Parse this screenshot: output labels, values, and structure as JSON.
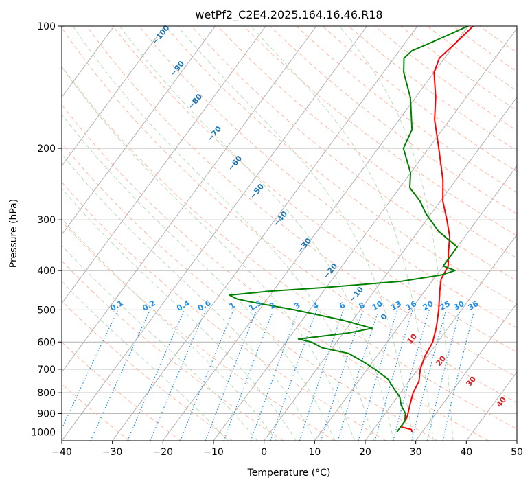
{
  "chart_data": {
    "type": "line",
    "subtype": "skew-t log-p",
    "title": "wetPf2_C2E4.2025.164.16.46.R18",
    "xlabel": "Temperature (°C)",
    "ylabel": "Pressure (hPa)",
    "xlim": [
      -40,
      50
    ],
    "ylim": [
      1050,
      100
    ],
    "y_scale": "log",
    "x_ticks": [
      "−40",
      "−30",
      "−20",
      "−10",
      "0",
      "10",
      "20",
      "30",
      "40",
      "50"
    ],
    "x_tick_values": [
      -40,
      -30,
      -20,
      -10,
      0,
      10,
      20,
      30,
      40,
      50
    ],
    "y_ticks": [
      "100",
      "200",
      "300",
      "400",
      "500",
      "600",
      "700",
      "800",
      "900",
      "1000"
    ],
    "y_tick_values": [
      100,
      200,
      300,
      400,
      500,
      600,
      700,
      800,
      900,
      1000
    ],
    "grid": true,
    "series": [
      {
        "role": "temperature",
        "color": "#ff0000",
        "points": [
          [
            1000,
            28
          ],
          [
            985,
            27.5
          ],
          [
            970,
            25
          ],
          [
            930,
            25
          ],
          [
            900,
            24.5
          ],
          [
            850,
            23.5
          ],
          [
            800,
            22.5
          ],
          [
            750,
            22
          ],
          [
            700,
            20.5
          ],
          [
            650,
            19.5
          ],
          [
            600,
            19
          ],
          [
            550,
            17.5
          ],
          [
            500,
            15.5
          ],
          [
            450,
            13
          ],
          [
            420,
            11.5
          ],
          [
            390,
            11
          ],
          [
            360,
            9
          ],
          [
            330,
            7
          ],
          [
            300,
            4
          ],
          [
            270,
            0.5
          ],
          [
            240,
            -2.5
          ],
          [
            200,
            -8
          ],
          [
            170,
            -13
          ],
          [
            150,
            -16
          ],
          [
            130,
            -20
          ],
          [
            120,
            -21
          ],
          [
            110,
            -20
          ],
          [
            100,
            -19
          ]
        ]
      },
      {
        "role": "dewpoint",
        "color": "#008000",
        "points": [
          [
            1000,
            25
          ],
          [
            970,
            25
          ],
          [
            940,
            25
          ],
          [
            900,
            24
          ],
          [
            860,
            22
          ],
          [
            820,
            20.5
          ],
          [
            780,
            18
          ],
          [
            740,
            15.5
          ],
          [
            700,
            11.5
          ],
          [
            670,
            8
          ],
          [
            640,
            4
          ],
          [
            620,
            -2
          ],
          [
            600,
            -5
          ],
          [
            590,
            -8
          ],
          [
            570,
            1
          ],
          [
            555,
            5
          ],
          [
            530,
            -2
          ],
          [
            500,
            -13
          ],
          [
            480,
            -22
          ],
          [
            470,
            -26
          ],
          [
            460,
            -28
          ],
          [
            450,
            -21
          ],
          [
            440,
            -10
          ],
          [
            425,
            4
          ],
          [
            410,
            11
          ],
          [
            400,
            13
          ],
          [
            390,
            10
          ],
          [
            370,
            10
          ],
          [
            350,
            10
          ],
          [
            320,
            4
          ],
          [
            290,
            -1
          ],
          [
            270,
            -4
          ],
          [
            250,
            -8
          ],
          [
            230,
            -10
          ],
          [
            200,
            -15
          ],
          [
            180,
            -16
          ],
          [
            150,
            -21
          ],
          [
            130,
            -26
          ],
          [
            120,
            -28
          ],
          [
            115,
            -27.5
          ],
          [
            110,
            -25
          ],
          [
            100,
            -20
          ]
        ]
      }
    ],
    "dry_adiabat_labels": [
      "−100",
      "−90",
      "−80",
      "−70",
      "−60",
      "−50",
      "−40",
      "−30",
      "−20",
      "−10",
      "0",
      "10",
      "20",
      "30",
      "40"
    ],
    "mixing_ratio_labels": [
      "0.1",
      "0.2",
      "0.4",
      "0.6",
      "1",
      "1.5",
      "2",
      "3",
      "4",
      "6",
      "8",
      "10",
      "13",
      "16",
      "20",
      "25",
      "30",
      "36"
    ],
    "colors": {
      "temperature": "#ff0000",
      "dewpoint": "#008000",
      "dry_adiabats": "#ffb8a0",
      "moist_adiabats": "#b8dcb8",
      "mixing_ratio": "#1f8ee8",
      "isotherms": "#b0b0b0",
      "isobars": "#b0b0b0",
      "dry_label_cold": "#1f77b4",
      "dry_label_warm": "#d62728"
    }
  }
}
